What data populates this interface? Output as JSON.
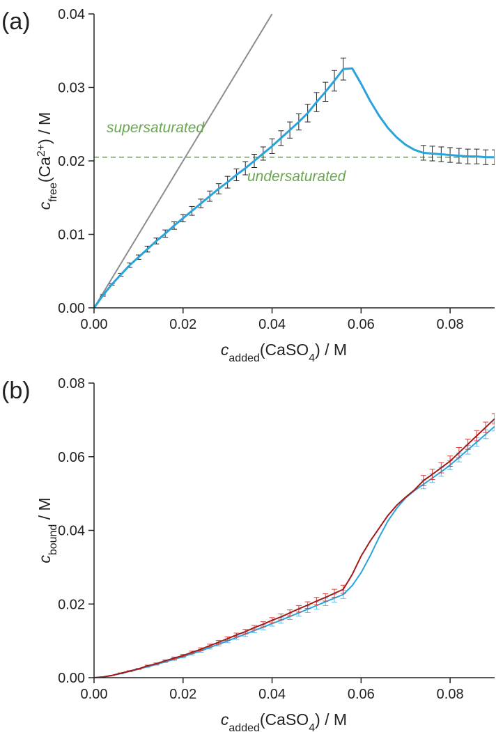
{
  "chart_data": [
    {
      "type": "line",
      "panel_label": "(a)",
      "xlim": [
        0,
        0.09
      ],
      "ylim": [
        0,
        0.04
      ],
      "xticks": [
        {
          "value": 0,
          "label": "0.00"
        },
        {
          "value": 0.02,
          "label": "0.02"
        },
        {
          "value": 0.04,
          "label": "0.04"
        },
        {
          "value": 0.06,
          "label": "0.06"
        },
        {
          "value": 0.08,
          "label": "0.08"
        }
      ],
      "yticks": [
        {
          "value": 0,
          "label": "0.00"
        },
        {
          "value": 0.01,
          "label": "0.01"
        },
        {
          "value": 0.02,
          "label": "0.02"
        },
        {
          "value": 0.03,
          "label": "0.03"
        },
        {
          "value": 0.04,
          "label": "0.04"
        }
      ],
      "xlabel_parts": [
        {
          "text": "c",
          "style": "italic"
        },
        {
          "text": "added",
          "style": "sub"
        },
        {
          "text": "(CaSO",
          "style": "normal"
        },
        {
          "text": "4",
          "style": "sub"
        },
        {
          "text": ") / M",
          "style": "normal"
        }
      ],
      "ylabel_parts": [
        {
          "text": "c",
          "style": "italic"
        },
        {
          "text": "free",
          "style": "sub"
        },
        {
          "text": "(Ca",
          "style": "normal"
        },
        {
          "text": "2+",
          "style": "super"
        },
        {
          "text": ") / M",
          "style": "normal"
        }
      ],
      "hline": 0.0205,
      "hline_color": "#6aa84f",
      "annotations": [
        "supersaturated",
        "undersaturated"
      ],
      "annotation_color": "#6aa84f",
      "x": [
        0,
        0.002,
        0.004,
        0.006,
        0.008,
        0.01,
        0.012,
        0.014,
        0.016,
        0.018,
        0.02,
        0.022,
        0.024,
        0.026,
        0.028,
        0.03,
        0.032,
        0.034,
        0.036,
        0.038,
        0.04,
        0.042,
        0.044,
        0.046,
        0.048,
        0.05,
        0.052,
        0.054,
        0.056,
        0.058,
        0.06,
        0.062,
        0.064,
        0.066,
        0.068,
        0.07,
        0.072,
        0.074,
        0.076,
        0.078,
        0.08,
        0.082,
        0.084,
        0.086,
        0.088,
        0.09
      ],
      "series": [
        {
          "color": "#8c8c8c",
          "width": 2,
          "x": [
            0,
            0.04
          ],
          "values": [
            0,
            0.04
          ]
        },
        {
          "color": "#29a3dc",
          "width": 3,
          "error_color": "#222222",
          "values": [
            0,
            0.0017,
            0.0032,
            0.0045,
            0.0058,
            0.0069,
            0.008,
            0.0091,
            0.0101,
            0.0112,
            0.0122,
            0.0132,
            0.0142,
            0.0152,
            0.0162,
            0.0171,
            0.0181,
            0.019,
            0.02,
            0.021,
            0.022,
            0.0231,
            0.0242,
            0.0253,
            0.0265,
            0.028,
            0.0294,
            0.0309,
            0.0325,
            0.0326,
            0.0305,
            0.0282,
            0.0262,
            0.0245,
            0.0232,
            0.0222,
            0.0215,
            0.0211,
            0.021,
            0.0209,
            0.0208,
            0.0207,
            0.0206,
            0.0206,
            0.0205,
            0.0205
          ],
          "errors": [
            0,
            0.0001,
            0.0001,
            0.0002,
            0.0003,
            0.0003,
            0.0004,
            0.0004,
            0.0005,
            0.0005,
            0.0005,
            0.0006,
            0.0006,
            0.0007,
            0.0007,
            0.0008,
            0.0008,
            0.0009,
            0.0009,
            0.0009,
            0.001,
            0.001,
            0.0011,
            0.0011,
            0.0012,
            0.0013,
            0.0013,
            0.0014,
            0.0015,
            null,
            null,
            null,
            null,
            null,
            null,
            null,
            null,
            0.001,
            0.001,
            0.001,
            0.001,
            0.001,
            0.001,
            0.001,
            0.001,
            0.001
          ]
        }
      ]
    },
    {
      "type": "line",
      "panel_label": "(b)",
      "xlim": [
        0,
        0.09
      ],
      "ylim": [
        0,
        0.08
      ],
      "xticks": [
        {
          "value": 0,
          "label": "0.00"
        },
        {
          "value": 0.02,
          "label": "0.02"
        },
        {
          "value": 0.04,
          "label": "0.04"
        },
        {
          "value": 0.06,
          "label": "0.06"
        },
        {
          "value": 0.08,
          "label": "0.08"
        }
      ],
      "yticks": [
        {
          "value": 0,
          "label": "0.00"
        },
        {
          "value": 0.02,
          "label": "0.02"
        },
        {
          "value": 0.04,
          "label": "0.04"
        },
        {
          "value": 0.06,
          "label": "0.06"
        },
        {
          "value": 0.08,
          "label": "0.08"
        }
      ],
      "xlabel_parts": [
        {
          "text": "c",
          "style": "italic"
        },
        {
          "text": "added",
          "style": "sub"
        },
        {
          "text": "(CaSO",
          "style": "normal"
        },
        {
          "text": "4",
          "style": "sub"
        },
        {
          "text": ") / M",
          "style": "normal"
        }
      ],
      "ylabel_parts": [
        {
          "text": "c",
          "style": "italic"
        },
        {
          "text": "bound",
          "style": "sub"
        },
        {
          "text": " / M",
          "style": "normal"
        }
      ],
      "x": [
        0,
        0.002,
        0.004,
        0.006,
        0.008,
        0.01,
        0.012,
        0.014,
        0.016,
        0.018,
        0.02,
        0.022,
        0.024,
        0.026,
        0.028,
        0.03,
        0.032,
        0.034,
        0.036,
        0.038,
        0.04,
        0.042,
        0.044,
        0.046,
        0.048,
        0.05,
        0.052,
        0.054,
        0.056,
        0.058,
        0.06,
        0.062,
        0.064,
        0.066,
        0.068,
        0.07,
        0.072,
        0.074,
        0.076,
        0.078,
        0.08,
        0.082,
        0.084,
        0.086,
        0.088,
        0.09
      ],
      "series": [
        {
          "color": "#29a3dc",
          "width": 2,
          "error_color": "#5bbbe8",
          "values": [
            0,
            0.0002,
            0.0006,
            0.0011,
            0.0017,
            0.0023,
            0.003,
            0.0036,
            0.0043,
            0.005,
            0.0057,
            0.0065,
            0.0073,
            0.0082,
            0.0091,
            0.01,
            0.0109,
            0.0118,
            0.0128,
            0.0137,
            0.0147,
            0.0156,
            0.0166,
            0.0176,
            0.0186,
            0.0196,
            0.0206,
            0.0216,
            0.0226,
            0.025,
            0.0285,
            0.033,
            0.038,
            0.0425,
            0.046,
            0.0488,
            0.0508,
            0.0525,
            0.0542,
            0.0559,
            0.0577,
            0.0598,
            0.0619,
            0.064,
            0.0661,
            0.0682
          ],
          "errors": [
            0,
            0,
            0,
            0.0001,
            0.0001,
            0.0001,
            0.0002,
            0.0002,
            0.0002,
            0.0003,
            0.0003,
            0.0003,
            0.0004,
            0.0004,
            0.0005,
            0.0005,
            0.0005,
            0.0006,
            0.0006,
            0.0007,
            0.0007,
            0.0008,
            0.0008,
            0.0009,
            0.0009,
            0.001,
            0.001,
            0.0011,
            0.0011,
            null,
            null,
            null,
            null,
            null,
            null,
            null,
            null,
            0.0012,
            0.0012,
            0.0012,
            0.0012,
            0.0012,
            0.0012,
            0.0012,
            0.0012,
            0.0012
          ]
        },
        {
          "color": "#a31a1a",
          "width": 2,
          "error_color": "#d9413a",
          "values": [
            0,
            0.0002,
            0.0006,
            0.0012,
            0.0018,
            0.0024,
            0.0032,
            0.0038,
            0.0046,
            0.0053,
            0.006,
            0.0069,
            0.0077,
            0.0087,
            0.0096,
            0.0106,
            0.0116,
            0.0125,
            0.0136,
            0.0145,
            0.0156,
            0.0165,
            0.0176,
            0.0187,
            0.0197,
            0.0208,
            0.0218,
            0.0229,
            0.024,
            0.028,
            0.033,
            0.037,
            0.0405,
            0.044,
            0.0468,
            0.049,
            0.051,
            0.0535,
            0.0552,
            0.057,
            0.0588,
            0.0611,
            0.0634,
            0.0657,
            0.068,
            0.0703
          ],
          "errors": [
            0,
            0,
            0,
            0.0001,
            0.0001,
            0.0001,
            0.0002,
            0.0002,
            0.0002,
            0.0003,
            0.0003,
            0.0003,
            0.0004,
            0.0004,
            0.0005,
            0.0005,
            0.0005,
            0.0006,
            0.0006,
            0.0007,
            0.0007,
            0.0008,
            0.0008,
            0.0009,
            0.0009,
            0.001,
            0.001,
            0.0011,
            0.0011,
            null,
            null,
            null,
            null,
            null,
            null,
            null,
            null,
            0.0014,
            0.0014,
            0.0014,
            0.0014,
            0.0014,
            0.0014,
            0.0014,
            0.0014,
            0.0014
          ]
        }
      ]
    }
  ]
}
